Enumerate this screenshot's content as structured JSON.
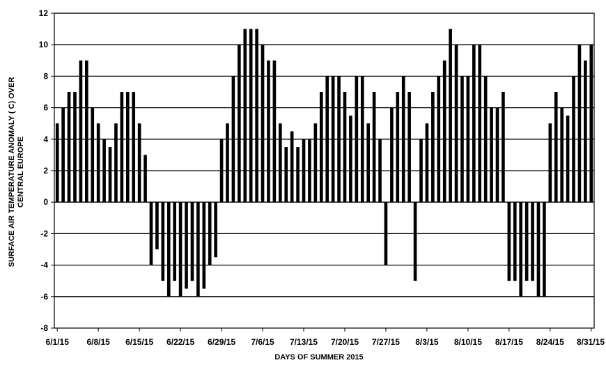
{
  "chart_data": {
    "type": "bar",
    "title": "",
    "xlabel": "DAYS OF SUMMER 2015",
    "ylabel_lines": [
      "SURFACE AIR TEMPERATURE ANOMALY ( C) OVER",
      "CENTRAL EUROPE"
    ],
    "ylim": [
      -8,
      12
    ],
    "yticks": [
      12,
      10,
      8,
      6,
      4,
      2,
      0,
      -2,
      -4,
      -6,
      -8
    ],
    "grid": "horizontal",
    "bar_color": "#000000",
    "start_date": "6/1/15",
    "xtick_labels": [
      "6/1/15",
      "6/8/15",
      "6/15/15",
      "6/22/15",
      "6/29/15",
      "7/6/15",
      "7/13/15",
      "7/20/15",
      "7/27/15",
      "8/3/15",
      "8/10/15",
      "8/17/15",
      "8/24/15",
      "8/31/15"
    ],
    "values": [
      5,
      6,
      7,
      7,
      9,
      9,
      6,
      5,
      4,
      3.5,
      5,
      7,
      7,
      7,
      5,
      3,
      -4,
      -3,
      -5,
      -6,
      -5,
      -6,
      -5.5,
      -5,
      -6,
      -5.5,
      -4,
      -3.5,
      4,
      5,
      8,
      10,
      11,
      11,
      11,
      10,
      9,
      9,
      5,
      3.5,
      4.5,
      3.5,
      4,
      4,
      5,
      7,
      8,
      8,
      8,
      7,
      5.5,
      8,
      8,
      5,
      7,
      4,
      -4,
      6,
      7,
      8,
      7,
      -5,
      4,
      5,
      7,
      8,
      9,
      11,
      10,
      8,
      8,
      10,
      10,
      8,
      6,
      6,
      7,
      -5,
      -5,
      -6,
      -5,
      -5,
      -6,
      -6,
      5,
      7,
      6,
      5.5,
      8,
      10,
      9,
      10
    ]
  }
}
